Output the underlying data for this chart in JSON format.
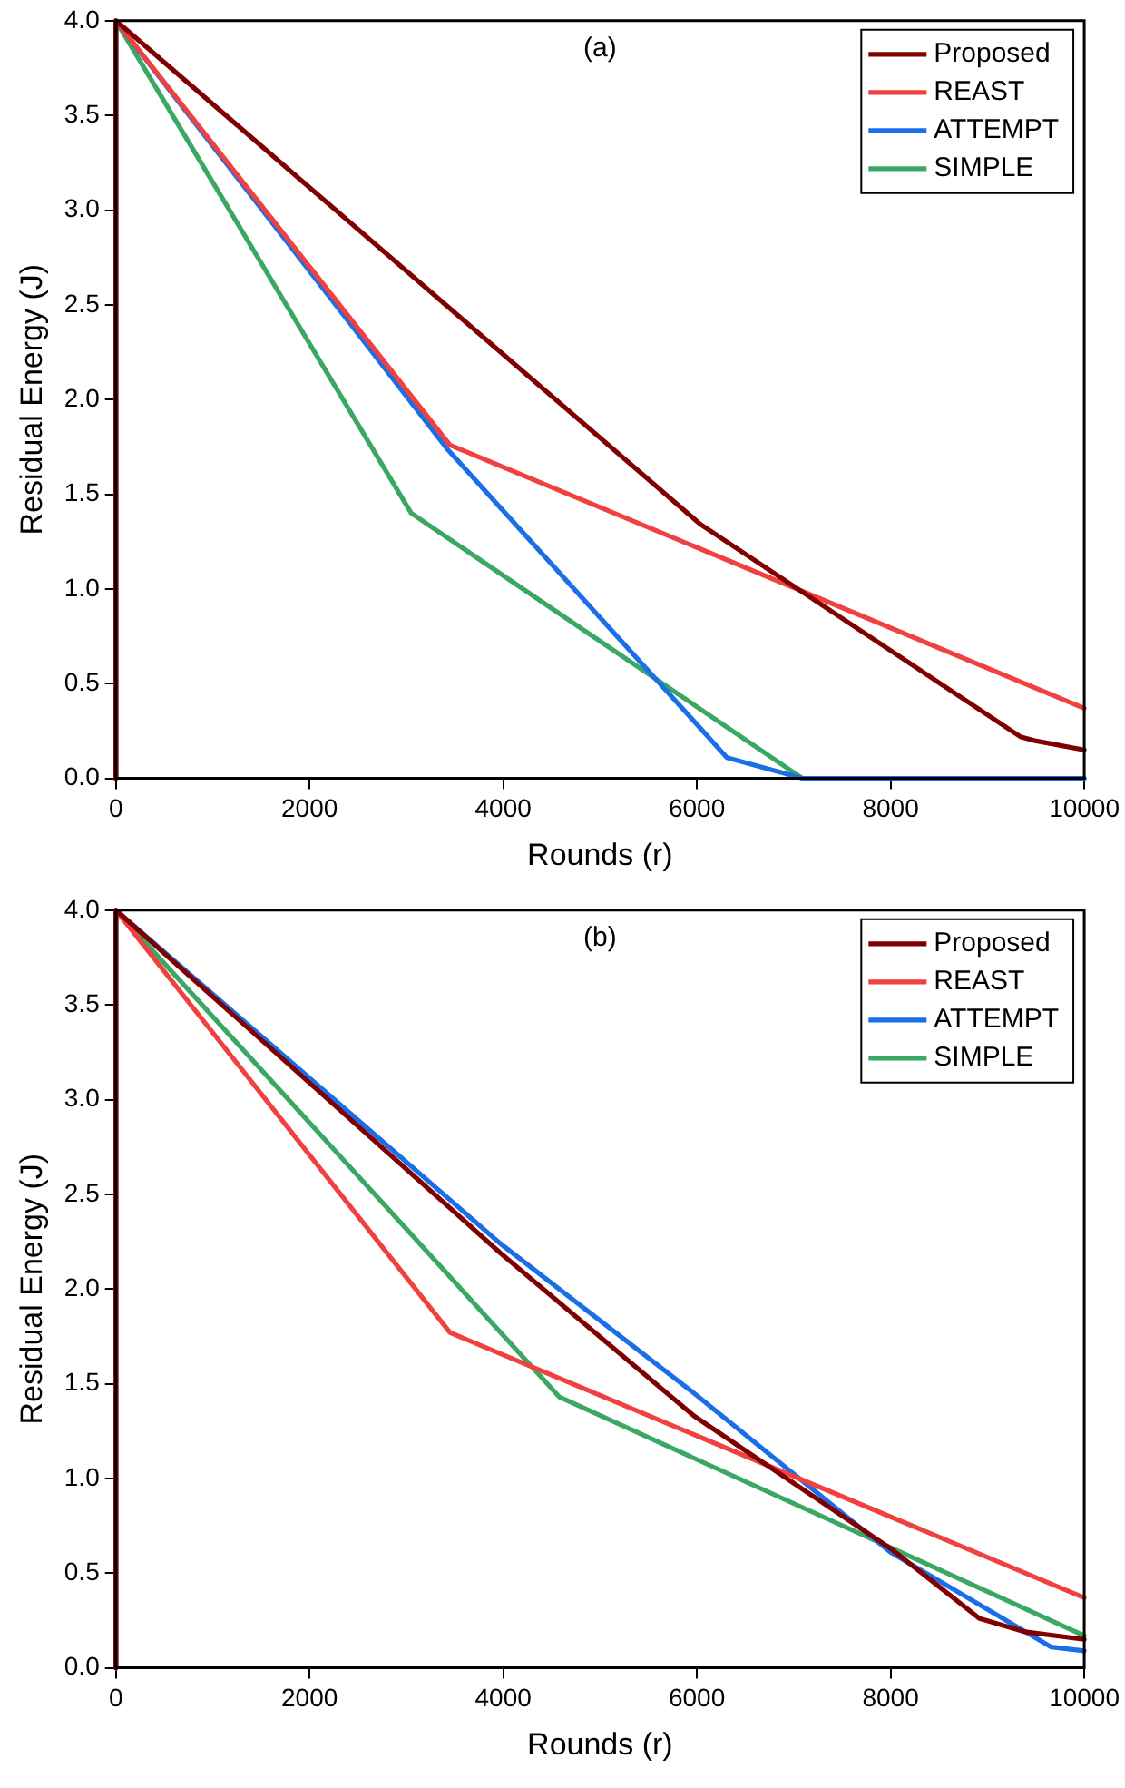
{
  "chart_data": [
    {
      "type": "line",
      "title": "(a)",
      "xlabel": "Rounds (r)",
      "ylabel": "Residual Energy (J)",
      "xlim": [
        0,
        10000
      ],
      "xticks": [
        0,
        2000,
        4000,
        6000,
        8000,
        10000
      ],
      "ylim": [
        0,
        4
      ],
      "yticks": [
        {
          "value": 0,
          "label": "0.0"
        },
        {
          "value": 0.5,
          "label": "0.5"
        },
        {
          "value": 1,
          "label": "1.0"
        },
        {
          "value": 1.5,
          "label": "1.5"
        },
        {
          "value": 2,
          "label": "2.0"
        },
        {
          "value": 2.5,
          "label": "2.5"
        },
        {
          "value": 3,
          "label": "3.0"
        },
        {
          "value": 3.5,
          "label": "3.5"
        },
        {
          "value": 4,
          "label": "4.0"
        }
      ],
      "grid": false,
      "legend": "top right",
      "marker": "none",
      "line_style": "solid",
      "series": [
        {
          "name": "Proposed",
          "color": "#800000",
          "x": [
            0,
            0,
            6040,
            9340,
            9480,
            10000
          ],
          "values": [
            0,
            4,
            1.34,
            0.22,
            0.2,
            0.15
          ]
        },
        {
          "name": "REAST",
          "color": "#f04040",
          "x": [
            0,
            0,
            3450,
            10000
          ],
          "values": [
            0,
            4,
            1.76,
            0.37
          ]
        },
        {
          "name": "ATTEMPT",
          "color": "#1a6ee8",
          "x": [
            0,
            0,
            3420,
            6310,
            7090,
            10000
          ],
          "values": [
            0,
            4,
            1.74,
            0.11,
            0,
            0
          ]
        },
        {
          "name": "SIMPLE",
          "color": "#3aa864",
          "x": [
            0,
            0,
            3050,
            7090,
            10000
          ],
          "values": [
            0,
            4,
            1.4,
            0,
            0
          ]
        }
      ]
    },
    {
      "type": "line",
      "title": "(b)",
      "xlabel": "Rounds (r)",
      "ylabel": "Residual Energy (J)",
      "xlim": [
        0,
        10000
      ],
      "xticks": [
        0,
        2000,
        4000,
        6000,
        8000,
        10000
      ],
      "ylim": [
        0,
        4
      ],
      "yticks": [
        {
          "value": 0,
          "label": "0.0"
        },
        {
          "value": 0.5,
          "label": "0.5"
        },
        {
          "value": 1,
          "label": "1.0"
        },
        {
          "value": 1.5,
          "label": "1.5"
        },
        {
          "value": 2,
          "label": "2.0"
        },
        {
          "value": 2.5,
          "label": "2.5"
        },
        {
          "value": 3,
          "label": "3.0"
        },
        {
          "value": 3.5,
          "label": "3.5"
        },
        {
          "value": 4,
          "label": "4.0"
        }
      ],
      "grid": false,
      "legend": "top right",
      "marker": "none",
      "line_style": "solid",
      "series": [
        {
          "name": "Proposed",
          "color": "#800000",
          "x": [
            0,
            0,
            3970,
            5970,
            8000,
            8920,
            9390,
            10000
          ],
          "values": [
            0,
            4,
            2.19,
            1.33,
            0.63,
            0.26,
            0.19,
            0.15
          ]
        },
        {
          "name": "REAST",
          "color": "#f04040",
          "x": [
            0,
            0,
            3450,
            10000
          ],
          "values": [
            0,
            4,
            1.77,
            0.37
          ]
        },
        {
          "name": "ATTEMPT",
          "color": "#1a6ee8",
          "x": [
            0,
            0,
            3970,
            5970,
            8000,
            9660,
            10000
          ],
          "values": [
            0,
            4,
            2.24,
            1.45,
            0.61,
            0.11,
            0.09
          ]
        },
        {
          "name": "SIMPLE",
          "color": "#3aa864",
          "x": [
            0,
            0,
            4580,
            10000
          ],
          "values": [
            0,
            4,
            1.43,
            0.17
          ]
        }
      ]
    }
  ]
}
